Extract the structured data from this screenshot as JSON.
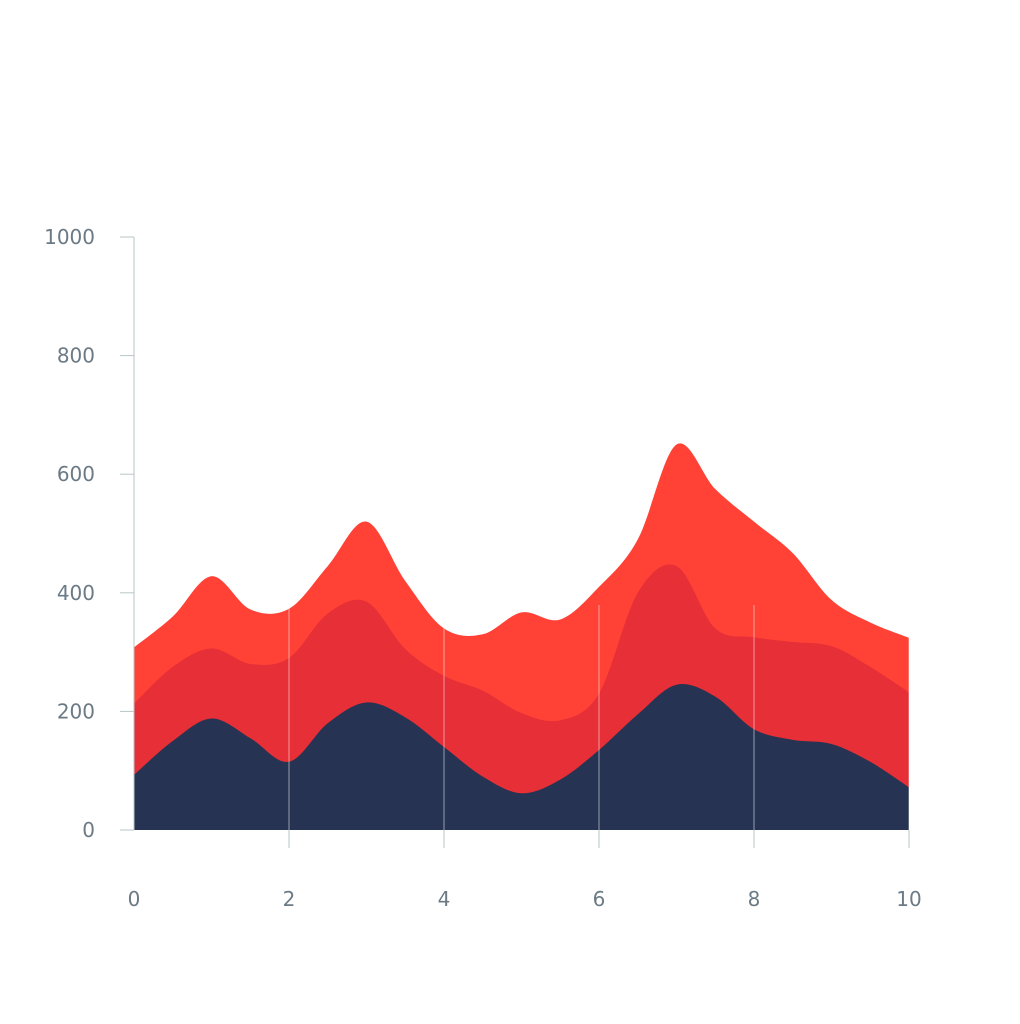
{
  "chart_data": {
    "type": "area",
    "stacked": true,
    "smooth": true,
    "x": [
      0,
      0.5,
      1,
      1.5,
      2,
      2.5,
      3,
      3.5,
      4,
      4.5,
      5,
      5.5,
      6,
      6.5,
      7,
      7.5,
      8,
      8.5,
      9,
      9.5,
      10
    ],
    "series": [
      {
        "color": "#263352",
        "values": [
          93,
          150,
          188,
          155,
          115,
          180,
          215,
          190,
          140,
          90,
          62,
          85,
          135,
          195,
          245,
          225,
          170,
          152,
          145,
          115,
          72
        ]
      },
      {
        "color": "#e62f36",
        "values": [
          120,
          125,
          118,
          125,
          175,
          185,
          170,
          115,
          120,
          145,
          135,
          100,
          95,
          205,
          200,
          115,
          155,
          165,
          165,
          160,
          160
        ]
      },
      {
        "color": "#ff4136",
        "values": [
          95,
          85,
          122,
          92,
          83,
          80,
          135,
          115,
          80,
          95,
          170,
          170,
          180,
          90,
          205,
          235,
          195,
          150,
          78,
          75,
          92
        ]
      }
    ],
    "xlim": [
      0,
      10
    ],
    "ylim": [
      0,
      1000
    ],
    "x_ticks": [
      "0",
      "2",
      "4",
      "6",
      "8",
      "10"
    ],
    "y_ticks": [
      "0",
      "200",
      "400",
      "600",
      "800",
      "1000"
    ],
    "title": "",
    "xlabel": "",
    "ylabel": "",
    "grid": "vertical",
    "axis_color": "#b8c4c8",
    "tick_label_color": "#6b7a85"
  }
}
